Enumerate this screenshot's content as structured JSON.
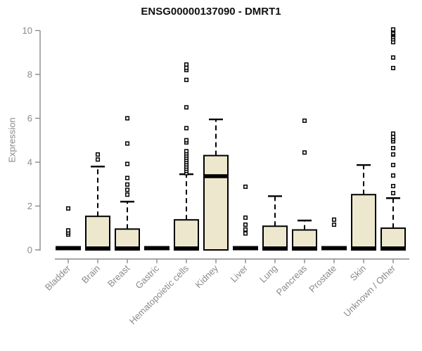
{
  "chart_data": {
    "type": "boxplot",
    "title": "ENSG00000137090 - DMRT1",
    "ylabel": "Expression",
    "xlabel": "",
    "ylim": [
      0,
      10
    ],
    "yticks": [
      0,
      2,
      4,
      6,
      8,
      10
    ],
    "grid": false,
    "legend": false,
    "colors": {
      "box_fill": "#EDE8CD",
      "box_stroke": "#000000",
      "median": "#000000",
      "whisker": "#000000",
      "outlier_stroke": "#000000",
      "outlier_fill": "#ffffff",
      "axis": "#8a8a8a",
      "tick_label": "#8a8a8a",
      "title": "#111111"
    },
    "categories": [
      {
        "label": "Bladder",
        "q1": 0,
        "median": 0,
        "q3": 0,
        "whisker_low": 0,
        "whisker_high": 0,
        "outliers": [
          0.7,
          0.79,
          0.89,
          1.89
        ]
      },
      {
        "label": "Brain",
        "q1": 0,
        "median": 0,
        "q3": 1.53,
        "whisker_low": 0,
        "whisker_high": 3.8,
        "outliers": [
          4.12,
          4.35
        ]
      },
      {
        "label": "Breast",
        "q1": 0,
        "median": 0,
        "q3": 0.95,
        "whisker_low": 0,
        "whisker_high": 2.2,
        "outliers": [
          2.52,
          2.74,
          2.98,
          3.28,
          3.92,
          4.85,
          6.0
        ]
      },
      {
        "label": "Gastric",
        "q1": 0,
        "median": 0,
        "q3": 0,
        "whisker_low": 0,
        "whisker_high": 0,
        "outliers": []
      },
      {
        "label": "Hematopoietic cells",
        "q1": 0,
        "median": 0,
        "q3": 1.37,
        "whisker_low": 0,
        "whisker_high": 3.45,
        "outliers": [
          3.5,
          3.6,
          3.7,
          3.8,
          3.9,
          4.0,
          4.1,
          4.2,
          4.3,
          4.4,
          4.5,
          4.9,
          5.0,
          5.55,
          6.5,
          7.75,
          8.2,
          8.3,
          8.45
        ]
      },
      {
        "label": "Kidney",
        "q1": 0,
        "median": 3.36,
        "q3": 4.3,
        "whisker_low": 0,
        "whisker_high": 5.95,
        "outliers": []
      },
      {
        "label": "Liver",
        "q1": 0,
        "median": 0,
        "q3": 0,
        "whisker_low": 0,
        "whisker_high": 0,
        "outliers": [
          0.75,
          0.93,
          1.15,
          1.47,
          2.88
        ]
      },
      {
        "label": "Lung",
        "q1": 0,
        "median": 0,
        "q3": 1.08,
        "whisker_low": 0,
        "whisker_high": 2.45,
        "outliers": []
      },
      {
        "label": "Pancreas",
        "q1": 0,
        "median": 0,
        "q3": 0.91,
        "whisker_low": 0,
        "whisker_high": 1.34,
        "outliers": [
          4.44,
          5.89
        ]
      },
      {
        "label": "Prostate",
        "q1": 0,
        "median": 0,
        "q3": 0,
        "whisker_low": 0,
        "whisker_high": 0,
        "outliers": [
          1.15,
          1.38
        ]
      },
      {
        "label": "Skin",
        "q1": 0,
        "median": 0,
        "q3": 2.52,
        "whisker_low": 0,
        "whisker_high": 3.87,
        "outliers": []
      },
      {
        "label": "Unknown / Other",
        "q1": 0,
        "median": 0,
        "q3": 0.99,
        "whisker_low": 0,
        "whisker_high": 2.36,
        "outliers": [
          2.59,
          2.91,
          3.39,
          3.87,
          4.35,
          4.64,
          4.95,
          5.05,
          5.15,
          5.3,
          8.29,
          8.77,
          9.47,
          9.6,
          9.7,
          9.8,
          9.85,
          9.9,
          10.0,
          10.05
        ]
      }
    ]
  }
}
